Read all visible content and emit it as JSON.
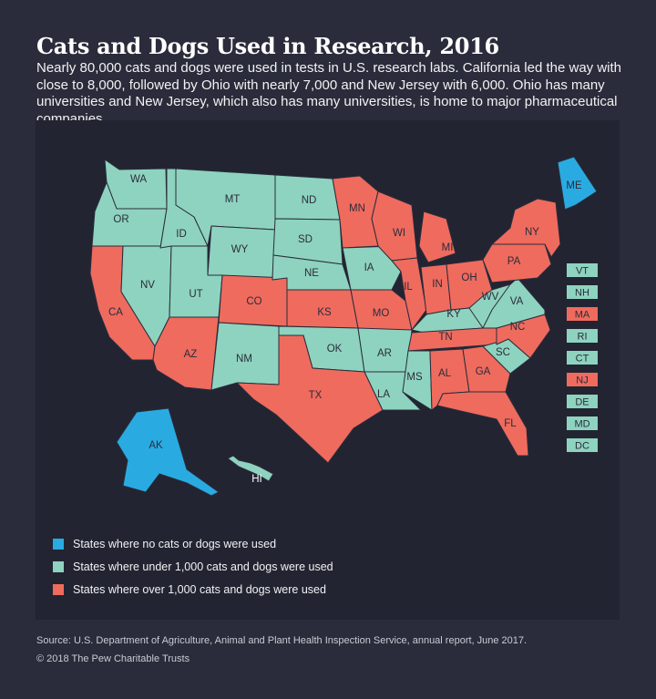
{
  "title": "Cats and Dogs Used in Research, 2016",
  "subtitle": "Nearly 80,000 cats and dogs were used in tests in U.S. research labs. California led the way with close to 8,000, followed by Ohio with nearly 7,000 and New Jersey with 6,000. Ohio has many universities and New Jersey, which also has many universities, is home to major pharmaceutical companies.",
  "colors": {
    "none": "#29abe2",
    "under": "#8ed3bf",
    "over": "#ef6b5e",
    "background": "#2a2c3b",
    "map_panel": "#222432",
    "state_border": "#2a2c3b"
  },
  "legend": [
    {
      "category": "none",
      "label": "States where no cats or dogs were used"
    },
    {
      "category": "under",
      "label": "States where under 1,000 cats and dogs were used"
    },
    {
      "category": "over",
      "label": "States where over 1,000 cats and dogs were used"
    }
  ],
  "states": {
    "WA": "under",
    "OR": "under",
    "CA": "over",
    "NV": "under",
    "ID": "under",
    "MT": "under",
    "WY": "under",
    "UT": "under",
    "AZ": "over",
    "CO": "over",
    "NM": "under",
    "ND": "under",
    "SD": "under",
    "NE": "under",
    "KS": "over",
    "OK": "under",
    "TX": "over",
    "MN": "over",
    "IA": "under",
    "MO": "over",
    "AR": "under",
    "LA": "under",
    "WI": "over",
    "IL": "over",
    "MI": "over",
    "IN": "over",
    "OH": "over",
    "KY": "under",
    "TN": "over",
    "MS": "under",
    "AL": "over",
    "GA": "over",
    "FL": "over",
    "SC": "under",
    "NC": "over",
    "VA": "under",
    "WV": "under",
    "PA": "over",
    "NY": "over",
    "ME": "none",
    "AK": "none",
    "HI": "under",
    "VT": "under",
    "NH": "under",
    "MA": "over",
    "RI": "under",
    "CT": "under",
    "NJ": "over",
    "DE": "under",
    "MD": "under",
    "DC": "under"
  },
  "small_state_boxes": [
    "VT",
    "NH",
    "MA",
    "RI",
    "CT",
    "NJ",
    "DE",
    "MD",
    "DC"
  ],
  "source": "Source: U.S. Department of Agriculture, Animal and Plant Health Inspection Service, annual report, June 2017.",
  "copyright": "© 2018 The Pew Charitable Trusts"
}
